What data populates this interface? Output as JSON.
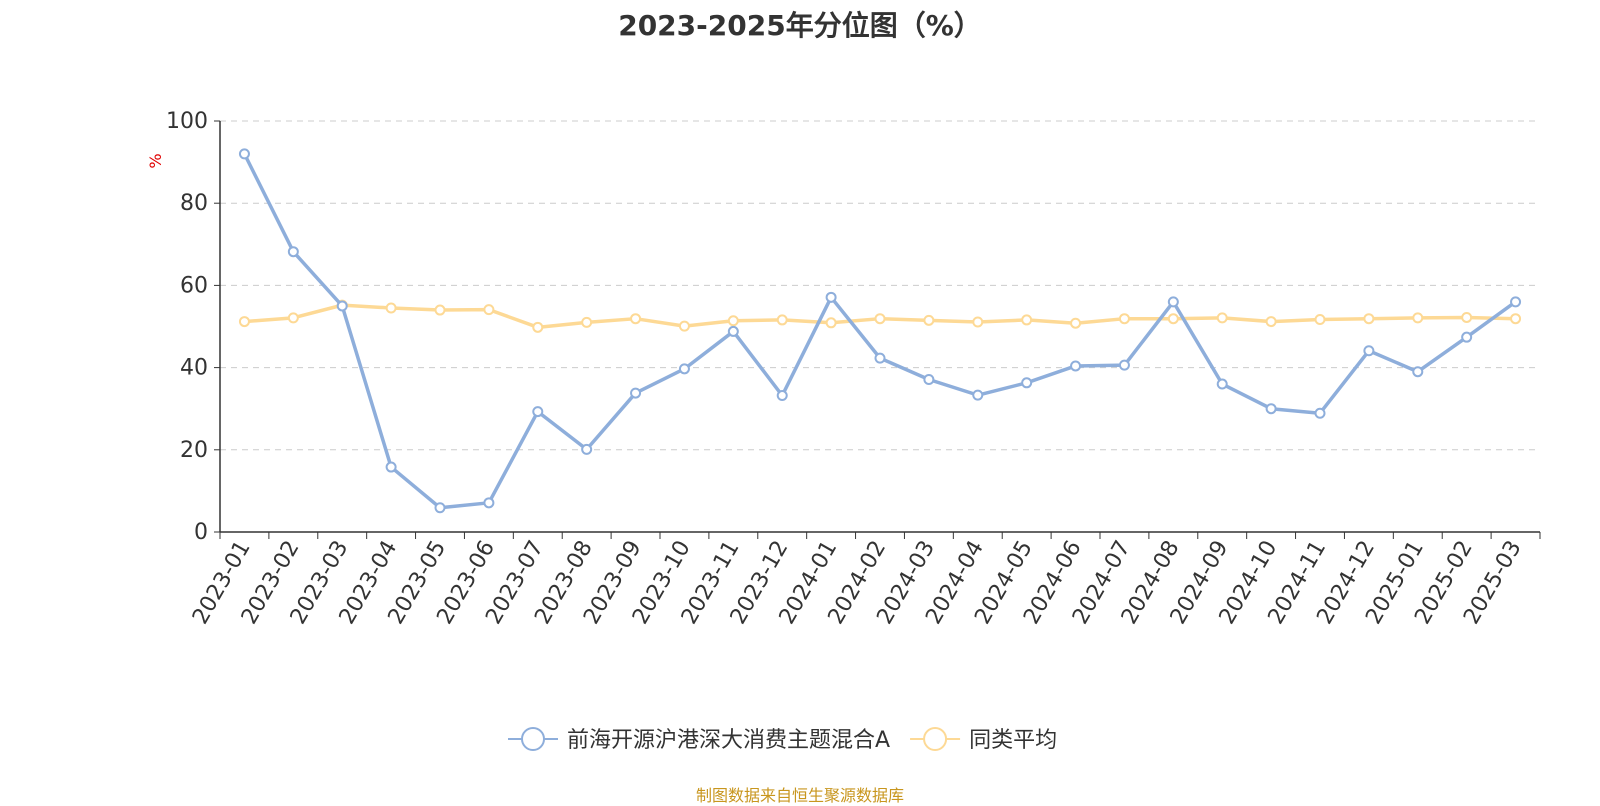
{
  "colors": {
    "series_main": "#8eaedb",
    "series_avg": "#fdd995",
    "axis": "#333333",
    "grid": "#cccccc",
    "ylabel": "#e00000",
    "source": "#c8961e"
  },
  "chart_data": {
    "type": "line",
    "title": "2023-2025年分位图（%）",
    "ylabel": "%",
    "xlabel": "",
    "ylim": [
      0,
      100
    ],
    "yticks": [
      "0",
      "20",
      "40",
      "60",
      "80",
      "100"
    ],
    "grid": true,
    "legend_position": "bottom-center",
    "categories": [
      "2023-01",
      "2023-02",
      "2023-03",
      "2023-04",
      "2023-05",
      "2023-06",
      "2023-07",
      "2023-08",
      "2023-09",
      "2023-10",
      "2023-11",
      "2023-12",
      "2024-01",
      "2024-02",
      "2024-03",
      "2024-04",
      "2024-05",
      "2024-06",
      "2024-07",
      "2024-08",
      "2024-09",
      "2024-10",
      "2024-11",
      "2024-12",
      "2025-01",
      "2025-02",
      "2025-03"
    ],
    "series": [
      {
        "name": "前海开源沪港深大消费主题混合A",
        "color_key": "series_main",
        "values": [
          92.0,
          68.2,
          55.0,
          15.8,
          5.9,
          7.1,
          29.3,
          20.1,
          33.8,
          39.7,
          48.8,
          33.2,
          57.1,
          42.3,
          37.1,
          33.3,
          36.3,
          40.4,
          40.6,
          56.0,
          36.0,
          30.0,
          28.9,
          44.1,
          39.0,
          47.4,
          56.0
        ]
      },
      {
        "name": "同类平均",
        "color_key": "series_avg",
        "values": [
          51.2,
          52.1,
          55.2,
          54.5,
          54.0,
          54.1,
          49.8,
          51.0,
          51.9,
          50.1,
          51.4,
          51.6,
          50.9,
          51.9,
          51.5,
          51.1,
          51.6,
          50.8,
          51.9,
          51.9,
          52.1,
          51.2,
          51.7,
          51.9,
          52.1,
          52.2,
          51.9
        ]
      }
    ]
  },
  "source": "制图数据来自恒生聚源数据库"
}
